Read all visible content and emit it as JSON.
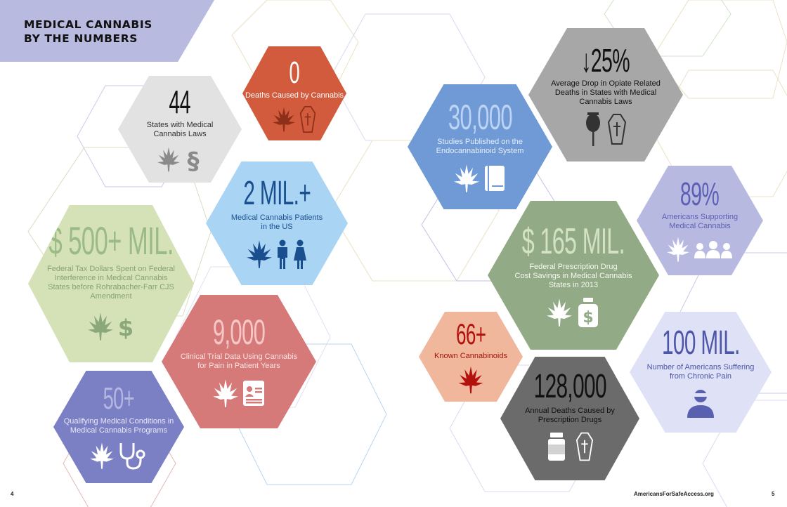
{
  "title": "MEDICAL CANNABIS\nBY THE NUMBERS",
  "colors": {
    "red": "#d15b3c",
    "gray": "#e2e2e2",
    "blue_light": "#aad4f4",
    "green_light": "#d5e2b8",
    "pink": "#d67979",
    "lavender": "#7b7fc3",
    "periwinkle": "#6f9ad6",
    "dark_gray": "#a7a7a7",
    "light_purple": "#b8b9e1",
    "sage": "#92ab86",
    "salmon": "#f0b79d",
    "charcoal": "#6b6b6b",
    "pale_blue": "#dfe2f6"
  },
  "stats": [
    {
      "value": "0",
      "label": "Deaths Caused by Cannabis",
      "icons": [
        "cannabis-leaf-icon",
        "coffin-icon"
      ]
    },
    {
      "value": "44",
      "label": "States with Medical\nCannabis Laws",
      "icons": [
        "cannabis-leaf-icon",
        "section-sign-icon"
      ]
    },
    {
      "value": "2 MIL.+",
      "label": "Medical Cannabis Patients\nin the US",
      "icons": [
        "cannabis-leaf-icon",
        "man-icon",
        "woman-icon"
      ]
    },
    {
      "value": "$ 500+ MIL.",
      "label": "Federal Tax Dollars Spent on Federal\nInterference in Medical Cannabis\nStates before Rohrabacher-Farr CJS\nAmendment",
      "icons": [
        "cannabis-leaf-icon",
        "dollar-sign-icon"
      ]
    },
    {
      "value": "9,000",
      "label": "Clinical Trial Data Using Cannabis\nfor Pain in Patient Years",
      "icons": [
        "cannabis-leaf-icon",
        "document-icon"
      ]
    },
    {
      "value": "50+",
      "label": "Qualifying Medical Conditions in\nMedical Cannabis Programs",
      "icons": [
        "cannabis-leaf-icon",
        "stethoscope-icon"
      ]
    },
    {
      "value": "30,000",
      "label": "Studies Published on the\nEndocannabinoid System",
      "icons": [
        "cannabis-leaf-icon",
        "book-icon"
      ]
    },
    {
      "value": "↓25%",
      "label": "Average Drop in Opiate Related\nDeaths in States with Medical\nCannabis Laws",
      "icons": [
        "poppy-icon",
        "coffin-icon"
      ]
    },
    {
      "value": "89%",
      "label": "Americans Supporting\nMedical Cannabis",
      "icons": [
        "cannabis-leaf-icon",
        "people-group-icon"
      ]
    },
    {
      "value": "$ 165 MIL.",
      "label": "Federal Prescription Drug\nCost Savings in Medical Cannabis\nStates in 2013",
      "icons": [
        "cannabis-leaf-icon",
        "money-bag-icon"
      ]
    },
    {
      "value": "66+",
      "label": "Known Cannabinoids",
      "icons": [
        "cannabis-leaf-icon"
      ]
    },
    {
      "value": "128,000",
      "label": "Annual Deaths Caused by\nPrescription Drugs",
      "icons": [
        "pill-bottle-icon",
        "coffin-icon"
      ]
    },
    {
      "value": "100 MIL.",
      "label": "Number of Americans Suffering\nfrom Chronic Pain",
      "icons": [
        "person-pain-icon"
      ]
    }
  ],
  "footer": {
    "left_page": "4",
    "website": "AmericansForSafeAccess.org",
    "right_page": "5"
  }
}
